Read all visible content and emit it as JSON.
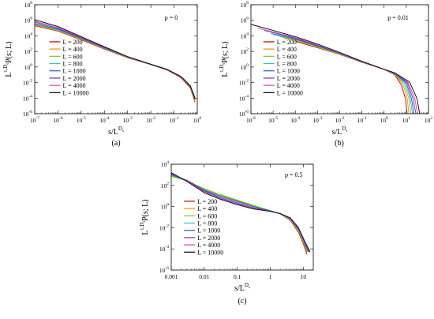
{
  "chart_data": [
    {
      "id": "a",
      "type": "line",
      "caption": "(a)",
      "annotation": "p = 0",
      "xlabel": {
        "main": "s/L",
        "sup": "D",
        "sub": "s"
      },
      "ylabel": {
        "main": "L",
        "sup1": "τ",
        "supmid": ",",
        "sup2": "D",
        "sub2": "s",
        "rest": "P(s; L)"
      },
      "x_scale": "log",
      "y_scale": "log",
      "xlim": [
        1e-07,
        1
      ],
      "ylim": [
        1e-06,
        100000000.0
      ],
      "x_ticks": [
        {
          "base": "10",
          "exp": "-7",
          "v": 1e-07
        },
        {
          "base": "10",
          "exp": "-6",
          "v": 1e-06
        },
        {
          "base": "10",
          "exp": "-5",
          "v": 1e-05
        },
        {
          "base": "10",
          "exp": "-4",
          "v": 0.0001
        },
        {
          "base": "10",
          "exp": "-3",
          "v": 0.001
        },
        {
          "base": "10",
          "exp": "-2",
          "v": 0.01
        },
        {
          "base": "10",
          "exp": "-1",
          "v": 0.1
        },
        {
          "base": "10",
          "exp": "0",
          "v": 1
        }
      ],
      "y_ticks": [
        {
          "base": "10",
          "exp": "-6",
          "v": 1e-06
        },
        {
          "base": "10",
          "exp": "-4",
          "v": 0.0001
        },
        {
          "base": "10",
          "exp": "-2",
          "v": 0.01
        },
        {
          "base": "10",
          "exp": "0",
          "v": 1
        },
        {
          "base": "10",
          "exp": "2",
          "v": 100.0
        },
        {
          "base": "10",
          "exp": "4",
          "v": 10000.0
        },
        {
          "base": "10",
          "exp": "6",
          "v": 1000000.0
        },
        {
          "base": "10",
          "exp": "8",
          "v": 100000000.0
        }
      ],
      "series": [
        {
          "name": "L = 200",
          "color": "#c00000",
          "x": [
            1e-07,
            1e-06,
            1e-05,
            0.0001,
            0.001,
            0.01,
            0.05,
            0.2,
            0.5,
            0.7,
            0.8
          ],
          "y": [
            200000.0,
            40000.0,
            3000.0,
            200.0,
            15.0,
            2,
            0.4,
            0.04,
            0.002,
            0.0001,
            3e-05
          ]
        },
        {
          "name": "L = 400",
          "color": "#e09a00",
          "x": [
            1e-07,
            1e-06,
            1e-05,
            0.0001,
            0.001,
            0.01,
            0.05,
            0.2,
            0.5,
            0.7,
            0.8
          ],
          "y": [
            250000.0,
            45000.0,
            3500.0,
            220.0,
            16.0,
            2,
            0.42,
            0.045,
            0.0025,
            0.00015,
            4e-05
          ]
        },
        {
          "name": "L = 600",
          "color": "#90c020",
          "x": [
            1e-07,
            1e-06,
            1e-05,
            0.0001,
            0.001,
            0.01,
            0.05,
            0.2,
            0.5,
            0.7,
            0.8
          ],
          "y": [
            300000.0,
            50000.0,
            4000.0,
            240.0,
            17.0,
            2.1,
            0.44,
            0.05,
            0.003,
            0.0002,
            5e-05
          ]
        },
        {
          "name": "L = 800",
          "color": "#30c0c0",
          "x": [
            1e-07,
            1e-06,
            1e-05,
            0.0001,
            0.001,
            0.01,
            0.05,
            0.2,
            0.5,
            0.7,
            0.8
          ],
          "y": [
            350000.0,
            60000.0,
            4500.0,
            260.0,
            18.0,
            2.1,
            0.45,
            0.05,
            0.003,
            0.0002,
            6e-05
          ]
        },
        {
          "name": "L = 1000",
          "color": "#2060c0",
          "x": [
            1e-07,
            1e-06,
            1e-05,
            0.0001,
            0.001,
            0.01,
            0.05,
            0.2,
            0.5,
            0.7,
            0.8
          ],
          "y": [
            400000.0,
            70000.0,
            5000.0,
            280.0,
            19.0,
            2.2,
            0.46,
            0.055,
            0.0035,
            0.00025,
            7e-05
          ]
        },
        {
          "name": "L = 2000",
          "color": "#7030a0",
          "x": [
            1e-07,
            1e-06,
            1e-05,
            0.0001,
            0.001,
            0.01,
            0.05,
            0.2,
            0.5,
            0.7,
            0.8
          ],
          "y": [
            600000.0,
            90000.0,
            6000.0,
            320.0,
            20.0,
            2.2,
            0.47,
            0.055,
            0.0035,
            0.00025,
            8e-05
          ]
        },
        {
          "name": "L = 4000",
          "color": "#d040c0",
          "x": [
            1e-07,
            1e-06,
            1e-05,
            0.0001,
            0.001,
            0.01,
            0.05,
            0.2,
            0.5,
            0.7,
            0.8
          ],
          "y": [
            800000.0,
            120000.0,
            7000.0,
            360.0,
            21.0,
            2.3,
            0.48,
            0.06,
            0.004,
            0.0003,
            9e-05
          ]
        },
        {
          "name": "L = 10000",
          "color": "#000000",
          "x": [
            1e-07,
            1e-06,
            1e-05,
            0.0001,
            0.001,
            0.01,
            0.05,
            0.2,
            0.5,
            0.7,
            0.8
          ],
          "y": [
            1200000.0,
            160000.0,
            8000.0,
            400.0,
            22.0,
            2.3,
            0.5,
            0.06,
            0.004,
            0.0003,
            0.0001
          ]
        }
      ]
    },
    {
      "id": "b",
      "type": "line",
      "caption": "(b)",
      "annotation": "p = 0.01",
      "xlabel": {
        "main": "s/L",
        "sup": "D",
        "sub": "s"
      },
      "ylabel": {
        "main": "L",
        "sup1": "τ",
        "supmid": ",",
        "sup2": "D",
        "sub2": "s",
        "rest": "P(s; L)"
      },
      "x_scale": "log",
      "y_scale": "log",
      "xlim": [
        1e-06,
        100
      ],
      "ylim": [
        1e-06,
        100000000.0
      ],
      "x_ticks": [
        {
          "base": "10",
          "exp": "-6",
          "v": 1e-06
        },
        {
          "base": "10",
          "exp": "-5",
          "v": 1e-05
        },
        {
          "base": "10",
          "exp": "-4",
          "v": 0.0001
        },
        {
          "base": "10",
          "exp": "-3",
          "v": 0.001
        },
        {
          "base": "10",
          "exp": "-2",
          "v": 0.01
        },
        {
          "base": "10",
          "exp": "-1",
          "v": 0.1
        },
        {
          "base": "10",
          "exp": "0",
          "v": 1
        },
        {
          "base": "10",
          "exp": "1",
          "v": 10
        },
        {
          "base": "10",
          "exp": "2",
          "v": 100
        }
      ],
      "y_ticks": [
        {
          "base": "10",
          "exp": "-6",
          "v": 1e-06
        },
        {
          "base": "10",
          "exp": "-4",
          "v": 0.0001
        },
        {
          "base": "10",
          "exp": "-2",
          "v": 0.01
        },
        {
          "base": "10",
          "exp": "0",
          "v": 1
        },
        {
          "base": "10",
          "exp": "2",
          "v": 100.0
        },
        {
          "base": "10",
          "exp": "4",
          "v": 10000.0
        },
        {
          "base": "10",
          "exp": "6",
          "v": 1000000.0
        },
        {
          "base": "10",
          "exp": "8",
          "v": 100000000.0
        }
      ],
      "series": [
        {
          "name": "L = 200",
          "color": "#c00000",
          "x": [
            0.0001,
            0.001,
            0.01,
            0.1,
            1,
            3,
            6,
            9,
            11
          ],
          "y": [
            2000.0,
            300.0,
            40.0,
            4,
            0.5,
            0.1,
            0.005,
            0.0001,
            1e-06
          ]
        },
        {
          "name": "L = 400",
          "color": "#e09a00",
          "x": [
            3e-05,
            0.0001,
            0.001,
            0.01,
            0.1,
            1,
            3,
            7,
            11,
            13
          ],
          "y": [
            5000.0,
            2500.0,
            350.0,
            40.0,
            4.2,
            0.5,
            0.12,
            0.006,
            0.0001,
            1e-06
          ]
        },
        {
          "name": "L = 600",
          "color": "#90c020",
          "x": [
            2e-05,
            0.0001,
            0.001,
            0.01,
            0.1,
            1,
            3,
            8,
            13,
            16
          ],
          "y": [
            8000.0,
            3000.0,
            400.0,
            45.0,
            4.4,
            0.5,
            0.13,
            0.007,
            0.0001,
            1e-06
          ]
        },
        {
          "name": "L = 800",
          "color": "#30c0c0",
          "x": [
            1e-05,
            0.0001,
            0.001,
            0.01,
            0.1,
            1,
            3,
            9,
            15,
            19
          ],
          "y": [
            15000.0,
            3500.0,
            450.0,
            50.0,
            4.5,
            0.5,
            0.14,
            0.008,
            0.0001,
            1e-06
          ]
        },
        {
          "name": "L = 1000",
          "color": "#2060c0",
          "x": [
            8e-06,
            0.0001,
            0.001,
            0.01,
            0.1,
            1,
            3,
            10,
            17,
            22
          ],
          "y": [
            20000.0,
            4000.0,
            500.0,
            55.0,
            4.6,
            0.5,
            0.15,
            0.009,
            0.0001,
            1e-06
          ]
        },
        {
          "name": "L = 2000",
          "color": "#7030a0",
          "x": [
            4e-06,
            0.0001,
            0.001,
            0.01,
            0.1,
            1,
            3,
            11,
            20,
            27
          ],
          "y": [
            50000.0,
            5000.0,
            600.0,
            60.0,
            4.8,
            0.5,
            0.16,
            0.01,
            0.0001,
            1e-06
          ]
        },
        {
          "name": "L = 4000",
          "color": "#d040c0",
          "x": [
            2e-06,
            0.0001,
            0.001,
            0.01,
            0.1,
            1,
            3,
            12,
            24,
            32
          ],
          "y": [
            100000.0,
            6000.0,
            700.0,
            65.0,
            5,
            0.5,
            0.17,
            0.011,
            0.0001,
            1e-06
          ]
        },
        {
          "name": "L = 10000",
          "color": "#000000",
          "x": [
            1e-06,
            1e-05,
            0.0001,
            0.001,
            0.01,
            0.1,
            1,
            3,
            14,
            30,
            40
          ],
          "y": [
            300000.0,
            50000.0,
            8000.0,
            900.0,
            75.0,
            5.5,
            0.5,
            0.18,
            0.012,
            0.0001,
            1e-06
          ]
        }
      ]
    },
    {
      "id": "c",
      "type": "line",
      "caption": "(c)",
      "annotation": "p = 0.5",
      "xlabel": {
        "main": "s/L",
        "sup": "D",
        "sub": "s"
      },
      "ylabel": {
        "main": "L",
        "sup1": "τ",
        "supmid": ",",
        "sup2": "D",
        "sub2": "s",
        "rest": "P(s; L)"
      },
      "x_scale": "log",
      "y_scale": "log",
      "xlim": [
        0.001,
        20
      ],
      "ylim": [
        1e-06,
        10000.0
      ],
      "x_ticks": [
        {
          "base": "0.001",
          "exp": "",
          "v": 0.001
        },
        {
          "base": "0.01",
          "exp": "",
          "v": 0.01
        },
        {
          "base": "0.1",
          "exp": "",
          "v": 0.1
        },
        {
          "base": "1",
          "exp": "",
          "v": 1
        },
        {
          "base": "10",
          "exp": "",
          "v": 10
        }
      ],
      "y_ticks": [
        {
          "base": "10",
          "exp": "-6",
          "v": 1e-06
        },
        {
          "base": "10",
          "exp": "-4",
          "v": 0.0001
        },
        {
          "base": "10",
          "exp": "-2",
          "v": 0.01
        },
        {
          "base": "10",
          "exp": "0",
          "v": 1
        },
        {
          "base": "10",
          "exp": "2",
          "v": 100.0
        },
        {
          "base": "10",
          "exp": "4",
          "v": 10000.0
        }
      ],
      "series": [
        {
          "name": "L = 200",
          "color": "#c00000",
          "x": [
            0.001,
            0.003,
            0.01,
            0.03,
            0.1,
            0.3,
            1,
            2,
            4,
            7,
            10,
            13
          ],
          "y": [
            1000.0,
            300.0,
            40.0,
            12.0,
            3.5,
            1.2,
            0.4,
            0.2,
            0.05,
            0.004,
            0.0003,
            3e-05
          ]
        },
        {
          "name": "L = 400",
          "color": "#e09a00",
          "x": [
            0.001,
            0.003,
            0.01,
            0.03,
            0.1,
            0.3,
            1,
            2,
            4,
            7,
            10,
            13
          ],
          "y": [
            800.0,
            280.0,
            45.0,
            13.0,
            4,
            1.3,
            0.4,
            0.2,
            0.055,
            0.005,
            0.0004,
            5e-05
          ]
        },
        {
          "name": "L = 600",
          "color": "#90c020",
          "x": [
            0.001,
            0.003,
            0.01,
            0.03,
            0.1,
            0.3,
            1,
            2,
            4,
            7,
            10,
            13
          ],
          "y": [
            700.0,
            260.0,
            50.0,
            14.0,
            4.2,
            1.35,
            0.42,
            0.2,
            0.06,
            0.006,
            0.0005,
            6e-05
          ]
        },
        {
          "name": "L = 800",
          "color": "#30c0c0",
          "x": [
            0.001,
            0.003,
            0.01,
            0.03,
            0.1,
            0.3,
            1,
            2,
            4,
            7,
            10,
            14
          ],
          "y": [
            900.0,
            270.0,
            40.0,
            11.0,
            3.2,
            1.1,
            0.4,
            0.21,
            0.065,
            0.007,
            0.0006,
            5e-05
          ]
        },
        {
          "name": "L = 1000",
          "color": "#2060c0",
          "x": [
            0.001,
            0.003,
            0.01,
            0.03,
            0.1,
            0.3,
            1,
            2,
            4,
            7,
            10,
            14
          ],
          "y": [
            1100.0,
            300.0,
            35.0,
            9,
            2.8,
            1,
            0.4,
            0.22,
            0.07,
            0.008,
            0.0007,
            6e-05
          ]
        },
        {
          "name": "L = 2000",
          "color": "#7030a0",
          "x": [
            0.001,
            0.003,
            0.01,
            0.03,
            0.1,
            0.3,
            1,
            2,
            4,
            7,
            10,
            15
          ],
          "y": [
            1200.0,
            280.0,
            30.0,
            7,
            2.2,
            0.8,
            0.38,
            0.22,
            0.075,
            0.009,
            0.0008,
            5e-05
          ]
        },
        {
          "name": "L = 4000",
          "color": "#d040c0",
          "x": [
            0.001,
            0.003,
            0.01,
            0.03,
            0.1,
            0.3,
            1,
            2,
            4,
            7,
            10,
            15
          ],
          "y": [
            1400.0,
            260.0,
            25.0,
            6,
            1.8,
            0.7,
            0.36,
            0.22,
            0.08,
            0.01,
            0.0009,
            6e-05
          ]
        },
        {
          "name": "L = 10000",
          "color": "#000000",
          "x": [
            0.001,
            0.003,
            0.01,
            0.03,
            0.1,
            0.3,
            1,
            2,
            4,
            7,
            10,
            16
          ],
          "y": [
            1600.0,
            240.0,
            20.0,
            5,
            1.5,
            0.6,
            0.35,
            0.22,
            0.085,
            0.011,
            0.001,
            5e-05
          ]
        }
      ]
    }
  ]
}
